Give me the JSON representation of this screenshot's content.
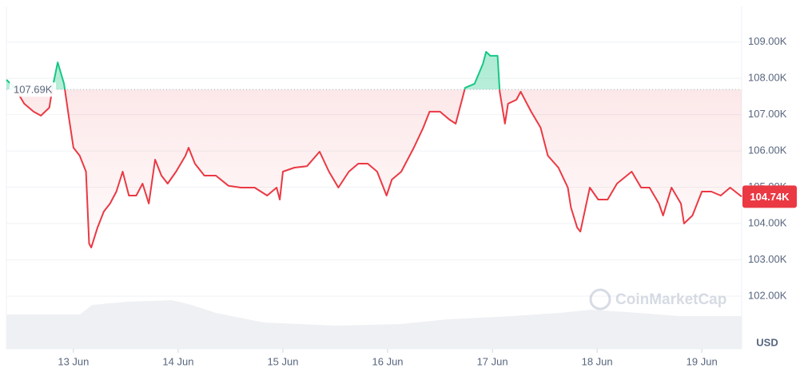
{
  "chart_data": {
    "type": "line",
    "x": [
      -0.64,
      -0.56,
      -0.47,
      -0.38,
      -0.31,
      -0.23,
      -0.2,
      -0.15,
      -0.09,
      -0.04,
      0,
      0.06,
      0.12,
      0.15,
      0.17,
      0.23,
      0.29,
      0.35,
      0.41,
      0.47,
      0.53,
      0.6,
      0.66,
      0.72,
      0.78,
      0.84,
      0.9,
      0.98,
      1.07,
      1.1,
      1.16,
      1.25,
      1.36,
      1.48,
      1.6,
      1.73,
      1.85,
      1.94,
      1.97,
      2,
      2.11,
      2.23,
      2.35,
      2.44,
      2.53,
      2.63,
      2.72,
      2.81,
      2.9,
      2.99,
      3.04,
      3.13,
      3.25,
      3.34,
      3.4,
      3.5,
      3.59,
      3.65,
      3.71,
      3.74,
      3.83,
      3.91,
      3.94,
      3.98,
      4.05,
      4.07,
      4.12,
      4.15,
      4.23,
      4.27,
      4.37,
      4.46,
      4.53,
      4.63,
      4.72,
      4.75,
      4.81,
      4.84,
      4.93,
      5.01,
      5.1,
      5.19,
      5.33,
      5.42,
      5.5,
      5.59,
      5.63,
      5.71,
      5.8,
      5.83,
      5.91,
      6,
      6.09,
      6.18,
      6.27,
      6.38
    ],
    "values": [
      107.96,
      107.74,
      107.3,
      107.08,
      106.97,
      107.19,
      107.74,
      108.44,
      107.85,
      106.86,
      106.09,
      105.87,
      105.43,
      103.45,
      103.34,
      103.89,
      104.33,
      104.55,
      104.88,
      105.43,
      104.77,
      104.77,
      105.1,
      104.55,
      105.76,
      105.32,
      105.1,
      105.43,
      105.87,
      106.09,
      105.65,
      105.32,
      105.32,
      105.04,
      104.99,
      104.99,
      104.77,
      104.99,
      104.66,
      105.43,
      105.54,
      105.58,
      105.98,
      105.43,
      104.99,
      105.43,
      105.65,
      105.65,
      105.43,
      104.77,
      105.21,
      105.43,
      106.09,
      106.64,
      107.08,
      107.08,
      106.86,
      106.75,
      107.41,
      107.74,
      107.85,
      108.4,
      108.73,
      108.62,
      108.62,
      107.63,
      106.75,
      107.3,
      107.41,
      107.63,
      107.08,
      106.64,
      105.87,
      105.54,
      104.99,
      104.44,
      103.89,
      103.78,
      104.99,
      104.66,
      104.66,
      105.1,
      105.43,
      104.99,
      104.99,
      104.55,
      104.22,
      104.99,
      104.55,
      104,
      104.22,
      104.88,
      104.88,
      104.77,
      104.99,
      104.74
    ],
    "color_above": "#16c784",
    "color_below": "#ea3943",
    "baseline": {
      "value": 107.69,
      "label": "107.69K"
    },
    "last_price": {
      "value": 104.74,
      "label": "104.74K"
    },
    "xlim": [
      -0.64,
      6.38
    ],
    "xticks": [
      {
        "value": 0,
        "label": "13 Jun"
      },
      {
        "value": 1,
        "label": "14 Jun"
      },
      {
        "value": 2,
        "label": "15 Jun"
      },
      {
        "value": 3,
        "label": "16 Jun"
      },
      {
        "value": 4,
        "label": "17 Jun"
      },
      {
        "value": 5,
        "label": "18 Jun"
      },
      {
        "value": 6,
        "label": "19 Jun"
      }
    ],
    "ylim": [
      100.55,
      109.98
    ],
    "yticks": [
      {
        "value": 102,
        "label": "102.00K"
      },
      {
        "value": 103,
        "label": "103.00K"
      },
      {
        "value": 104,
        "label": "104.00K"
      },
      {
        "value": 105,
        "label": "105.00K"
      },
      {
        "value": 106,
        "label": "106.00K"
      },
      {
        "value": 107,
        "label": "107.00K"
      },
      {
        "value": 108,
        "label": "108.00K"
      },
      {
        "value": 109,
        "label": "109.00K"
      }
    ],
    "grid": true,
    "y_unit": "USD",
    "watermark": "CoinMarketCap"
  }
}
